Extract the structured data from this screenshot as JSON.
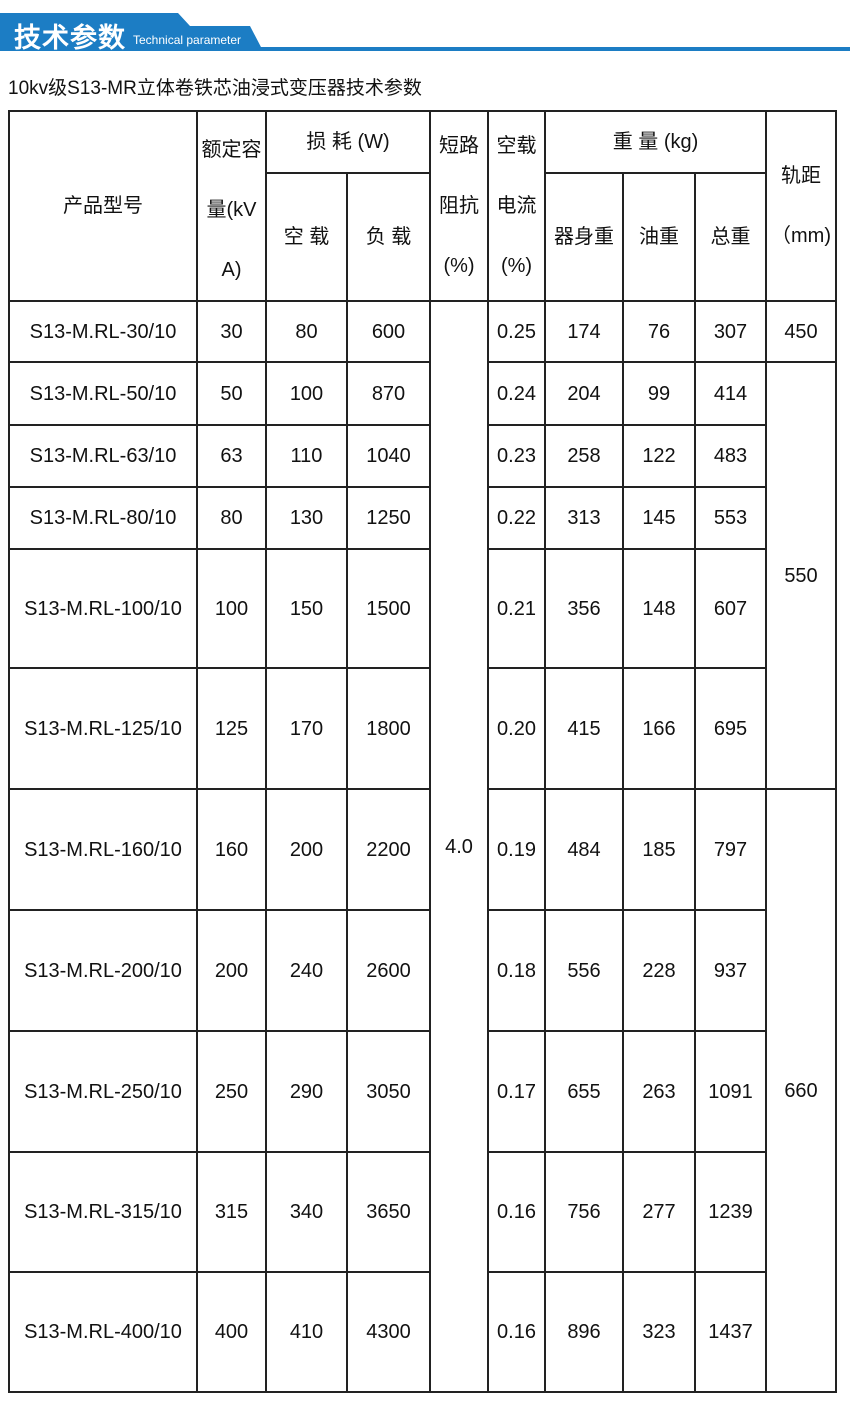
{
  "banner": {
    "title": "技术参数",
    "subtitle": "Technical parameter",
    "color": "#1c7dc4"
  },
  "table_title": "10kv级S13-MR立体卷铁芯油浸式变压器技术参数",
  "headers": {
    "model": "产品型号",
    "capacity": "额定容量(kVA)",
    "loss": "损 耗 (W)",
    "loss_noload": "空 载",
    "loss_load": "负 载",
    "impedance": "短路阻抗(%)",
    "current": "空载电流(%)",
    "weight": "重 量 (kg)",
    "w_body": "器身重",
    "w_oil": "油重",
    "w_total": "总重",
    "gauge": "轨距（mm)"
  },
  "impedance_all": "4.0",
  "gauges": [
    "450",
    "550",
    "660"
  ],
  "rows": [
    [
      "S13-M.RL-30/10",
      "30",
      "80",
      "600",
      "0.25",
      "174",
      "76",
      "307"
    ],
    [
      "S13-M.RL-50/10",
      "50",
      "100",
      "870",
      "0.24",
      "204",
      "99",
      "414"
    ],
    [
      "S13-M.RL-63/10",
      "63",
      "110",
      "1040",
      "0.23",
      "258",
      "122",
      "483"
    ],
    [
      "S13-M.RL-80/10",
      "80",
      "130",
      "1250",
      "0.22",
      "313",
      "145",
      "553"
    ],
    [
      "S13-M.RL-100/10",
      "100",
      "150",
      "1500",
      "0.21",
      "356",
      "148",
      "607"
    ],
    [
      "S13-M.RL-125/10",
      "125",
      "170",
      "1800",
      "0.20",
      "415",
      "166",
      "695"
    ],
    [
      "S13-M.RL-160/10",
      "160",
      "200",
      "2200",
      "0.19",
      "484",
      "185",
      "797"
    ],
    [
      "S13-M.RL-200/10",
      "200",
      "240",
      "2600",
      "0.18",
      "556",
      "228",
      "937"
    ],
    [
      "S13-M.RL-250/10",
      "250",
      "290",
      "3050",
      "0.17",
      "655",
      "263",
      "1091"
    ],
    [
      "S13-M.RL-315/10",
      "315",
      "340",
      "3650",
      "0.16",
      "756",
      "277",
      "1239"
    ],
    [
      "S13-M.RL-400/10",
      "400",
      "410",
      "4300",
      "0.16",
      "896",
      "323",
      "1437"
    ]
  ]
}
